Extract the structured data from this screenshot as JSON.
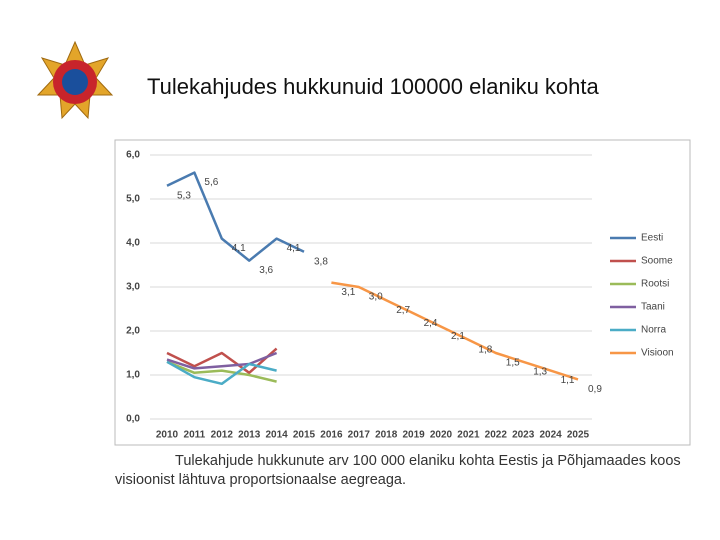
{
  "title": "Tulekahjudes hukkunuid 100000 elaniku kohta",
  "caption": "Tulekahjude hukkunute arv 100 000 elaniku kohta Eestis ja Põhjamaades koos visioonist lähtuva proportsionaalse aegreaga.",
  "chart_data": {
    "type": "line",
    "categories": [
      "2010",
      "2011",
      "2012",
      "2013",
      "2014",
      "2015",
      "2016",
      "2017",
      "2018",
      "2019",
      "2020",
      "2021",
      "2022",
      "2023",
      "2024",
      "2025"
    ],
    "ylim": [
      0,
      6
    ],
    "yticks": [
      {
        "value": 0,
        "label": "0,0"
      },
      {
        "value": 1,
        "label": "1,0"
      },
      {
        "value": 2,
        "label": "2,0"
      },
      {
        "value": 3,
        "label": "3,0"
      },
      {
        "value": 4,
        "label": "4,0"
      },
      {
        "value": 5,
        "label": "5,0"
      },
      {
        "value": 6,
        "label": "6,0"
      }
    ],
    "grid": true,
    "legend": "right",
    "series": [
      {
        "name": "Eesti",
        "color": "#4a7bb0",
        "values": [
          5.3,
          5.6,
          4.1,
          3.6,
          4.1,
          3.8,
          null,
          null,
          null,
          null,
          null,
          null,
          null,
          null,
          null,
          null
        ],
        "value_labels": [
          "5,3",
          "5,6",
          "4,1",
          "3,6",
          "4,1",
          "3,8",
          null,
          null,
          null,
          null,
          null,
          null,
          null,
          null,
          null,
          null
        ]
      },
      {
        "name": "Soome",
        "color": "#c0504d",
        "values": [
          1.5,
          1.2,
          1.5,
          1.05,
          1.6,
          null,
          null,
          null,
          null,
          null,
          null,
          null,
          null,
          null,
          null,
          null
        ]
      },
      {
        "name": "Rootsi",
        "color": "#9bbb59",
        "values": [
          1.3,
          1.05,
          1.1,
          1.0,
          0.85,
          null,
          null,
          null,
          null,
          null,
          null,
          null,
          null,
          null,
          null,
          null
        ]
      },
      {
        "name": "Taani",
        "color": "#7f5fa0",
        "values": [
          1.35,
          1.15,
          1.2,
          1.25,
          1.5,
          null,
          null,
          null,
          null,
          null,
          null,
          null,
          null,
          null,
          null,
          null
        ]
      },
      {
        "name": "Norra",
        "color": "#4bacc6",
        "values": [
          1.3,
          0.95,
          0.8,
          1.25,
          1.1,
          null,
          null,
          null,
          null,
          null,
          null,
          null,
          null,
          null,
          null,
          null
        ]
      },
      {
        "name": "Visioon",
        "color": "#f79646",
        "values": [
          null,
          null,
          null,
          null,
          null,
          null,
          3.1,
          3.0,
          2.7,
          2.4,
          2.1,
          1.8,
          1.5,
          1.3,
          1.1,
          0.9
        ],
        "value_labels": [
          null,
          null,
          null,
          null,
          null,
          null,
          "3,1",
          "3,0",
          "2,7",
          "2,4",
          "2,1",
          "1,8",
          "1,5",
          "1,3",
          "1,1",
          "0,9"
        ]
      }
    ]
  }
}
